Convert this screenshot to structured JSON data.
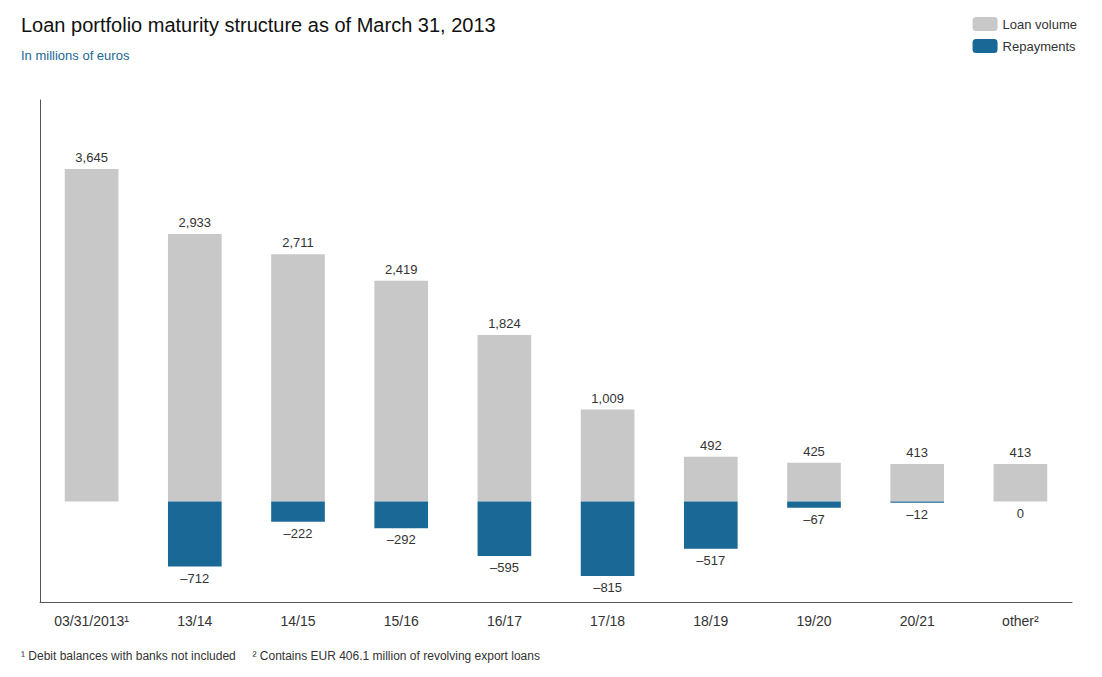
{
  "chart_data": {
    "type": "bar",
    "title": "Loan portfolio maturity structure as of March 31, 2013",
    "subtitle": "In millions of euros",
    "footnotes": [
      "¹ Debit balances with banks not included",
      "² Contains EUR 406.1 million of revolving export loans"
    ],
    "categories": [
      "03/31/2013¹",
      "13/14",
      "14/15",
      "15/16",
      "16/17",
      "17/18",
      "18/19",
      "19/20",
      "20/21",
      "other²"
    ],
    "series": [
      {
        "name": "Loan volume",
        "color": "#c8c8c8",
        "values": [
          3645,
          2933,
          2711,
          2419,
          1824,
          1009,
          492,
          425,
          413,
          413
        ],
        "value_labels": [
          "3,645",
          "2,933",
          "2,711",
          "2,419",
          "1,824",
          "1,009",
          "492",
          "425",
          "413",
          "413"
        ]
      },
      {
        "name": "Repayments",
        "color": "#1a6896",
        "values": [
          0,
          -712,
          -222,
          -292,
          -595,
          -815,
          -517,
          -67,
          -12,
          0
        ],
        "value_labels": [
          null,
          "–712",
          "–222",
          "–292",
          "–595",
          "–815",
          "–517",
          "–67",
          "–12",
          "0"
        ]
      }
    ],
    "ylim": [
      -1100,
      4400
    ],
    "grid": false,
    "legend": "upper right",
    "data_labels": true,
    "tick_labels": "x"
  }
}
